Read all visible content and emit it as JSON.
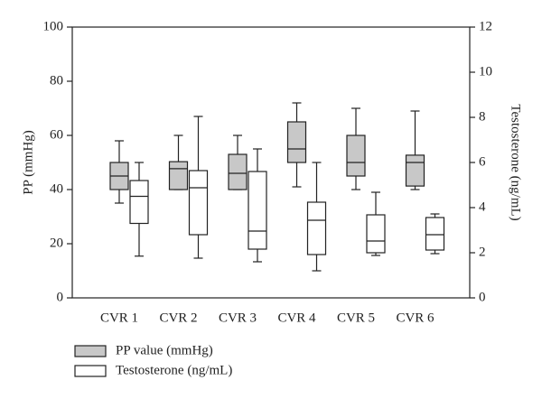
{
  "chart_data": {
    "type": "box",
    "categories": [
      "CVR 1",
      "CVR 2",
      "CVR 3",
      "CVR 4",
      "CVR 5",
      "CVR 6"
    ],
    "ylabel": "PP (mmHg)",
    "y2label": "Testosterone (ng/mL)",
    "ylim": [
      0,
      100
    ],
    "yticks": [
      0,
      20,
      40,
      60,
      80,
      100
    ],
    "y2lim": [
      0,
      12
    ],
    "y2ticks": [
      0,
      2,
      4,
      6,
      8,
      10,
      12
    ],
    "series": [
      {
        "name": "PP value (mmHg)",
        "color": "#c8c8c8",
        "axis": "y",
        "min": [
          35,
          40,
          40,
          41,
          40,
          40
        ],
        "q1": [
          40,
          40,
          40,
          50,
          45,
          41.3
        ],
        "median": [
          45,
          47.7,
          46,
          55,
          50,
          50
        ],
        "q3": [
          50,
          50.3,
          53,
          65,
          60,
          52.7
        ],
        "max": [
          58,
          60,
          60,
          72,
          70,
          69
        ]
      },
      {
        "name": "Testosterone (ng/mL)",
        "color": "#ffffff",
        "axis": "y2",
        "min": [
          1.85,
          1.76,
          1.6,
          1.2,
          1.88,
          1.96
        ],
        "q1": [
          3.3,
          2.8,
          2.16,
          1.92,
          2.0,
          2.12
        ],
        "median": [
          4.5,
          4.88,
          2.96,
          3.44,
          2.52,
          2.8
        ],
        "q3": [
          5.2,
          5.64,
          5.6,
          4.24,
          3.68,
          3.56
        ],
        "max": [
          6.0,
          8.04,
          6.6,
          6.0,
          4.68,
          3.72
        ]
      }
    ]
  }
}
